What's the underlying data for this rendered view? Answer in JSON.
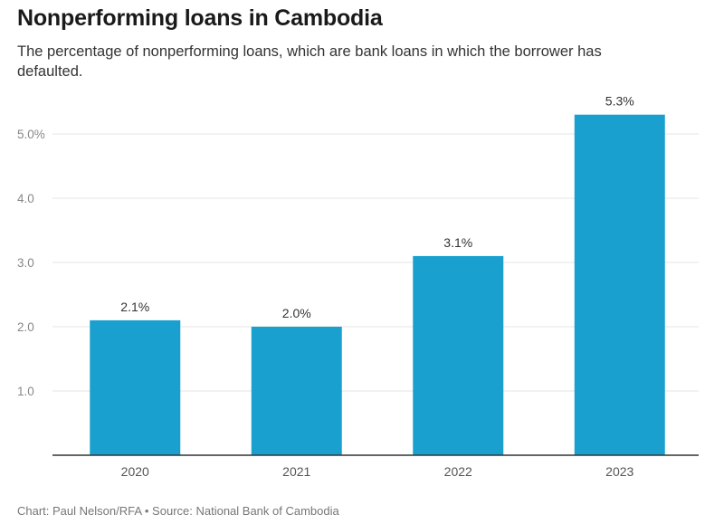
{
  "header": {
    "title": "Nonperforming loans in Cambodia",
    "subtitle": "The percentage of nonperforming loans, which are bank loans in which the borrower has defaulted."
  },
  "footer": {
    "credit": "Chart: Paul Nelson/RFA • Source: National Bank of Cambodia"
  },
  "colors": {
    "bar": "#1aa0cf",
    "grid": "#e4e4e4",
    "axis": "#333333",
    "tick_text": "#888888",
    "label_text": "#333333"
  },
  "chart_data": {
    "type": "bar",
    "title": "Nonperforming loans in Cambodia",
    "categories": [
      "2020",
      "2021",
      "2022",
      "2023"
    ],
    "values": [
      2.1,
      2.0,
      3.1,
      5.3
    ],
    "value_labels": [
      "2.1%",
      "2.0%",
      "3.1%",
      "5.3%"
    ],
    "yticks": [
      1.0,
      2.0,
      3.0,
      4.0,
      5.0
    ],
    "ytick_labels": [
      "1.0",
      "2.0",
      "3.0",
      "4.0",
      "5.0%"
    ],
    "ylim": [
      0,
      5.5
    ],
    "grid": true,
    "xlabel": "",
    "ylabel": ""
  }
}
